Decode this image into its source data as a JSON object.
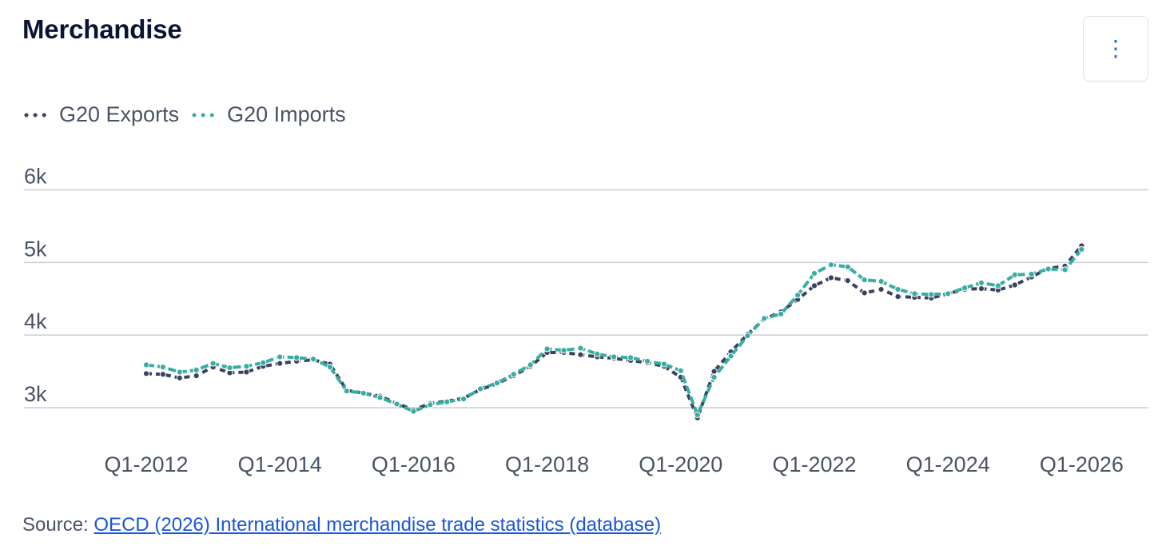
{
  "title": "Merchandise",
  "menu_icon": "vertical-ellipsis-icon",
  "source": {
    "prefix": "Source: ",
    "link_text": "OECD (2026) International merchandise trade statistics (database)"
  },
  "colors": {
    "exports": "#3b4260",
    "imports": "#3aada3",
    "grid": "#c9cfda",
    "axis_text": "#4a5364"
  },
  "chart_data": {
    "type": "line",
    "y_ticks": [
      "3k",
      "4k",
      "5k",
      "6k"
    ],
    "ylim": [
      2600,
      6200
    ],
    "x_tick_labels": [
      "Q1-2012",
      "Q1-2014",
      "Q1-2016",
      "Q1-2018",
      "Q1-2020",
      "Q1-2022",
      "Q1-2024",
      "Q1-2026"
    ],
    "grid": true,
    "legend_position": "top-left",
    "series": [
      {
        "name": "G20 Exports",
        "key": "exports",
        "style": "dotted",
        "points": [
          [
            "Q1-2012",
            3470
          ],
          [
            "Q2-2012",
            3460
          ],
          [
            "Q3-2012",
            3410
          ],
          [
            "Q4-2012",
            3440
          ],
          [
            "Q1-2013",
            3560
          ],
          [
            "Q2-2013",
            3480
          ],
          [
            "Q3-2013",
            3490
          ],
          [
            "Q4-2013",
            3570
          ],
          [
            "Q1-2014",
            3610
          ],
          [
            "Q2-2014",
            3640
          ],
          [
            "Q3-2014",
            3660
          ],
          [
            "Q4-2014",
            3600
          ],
          [
            "Q1-2015",
            3240
          ],
          [
            "Q2-2015",
            3200
          ],
          [
            "Q3-2015",
            3160
          ],
          [
            "Q4-2015",
            3060
          ],
          [
            "Q1-2016",
            2970
          ],
          [
            "Q2-2016",
            3060
          ],
          [
            "Q3-2016",
            3090
          ],
          [
            "Q4-2016",
            3130
          ],
          [
            "Q1-2017",
            3250
          ],
          [
            "Q2-2017",
            3330
          ],
          [
            "Q3-2017",
            3440
          ],
          [
            "Q4-2017",
            3570
          ],
          [
            "Q1-2018",
            3760
          ],
          [
            "Q2-2018",
            3760
          ],
          [
            "Q3-2018",
            3730
          ],
          [
            "Q4-2018",
            3700
          ],
          [
            "Q1-2019",
            3680
          ],
          [
            "Q2-2019",
            3650
          ],
          [
            "Q3-2019",
            3620
          ],
          [
            "Q4-2019",
            3570
          ],
          [
            "Q1-2020",
            3420
          ],
          [
            "Q2-2020",
            2860
          ],
          [
            "Q3-2020",
            3500
          ],
          [
            "Q4-2020",
            3770
          ],
          [
            "Q1-2021",
            4010
          ],
          [
            "Q2-2021",
            4220
          ],
          [
            "Q3-2021",
            4320
          ],
          [
            "Q4-2021",
            4490
          ],
          [
            "Q1-2022",
            4680
          ],
          [
            "Q2-2022",
            4790
          ],
          [
            "Q3-2022",
            4750
          ],
          [
            "Q4-2022",
            4580
          ],
          [
            "Q1-2023",
            4630
          ],
          [
            "Q2-2023",
            4530
          ],
          [
            "Q3-2023",
            4520
          ],
          [
            "Q4-2023",
            4510
          ],
          [
            "Q1-2024",
            4570
          ],
          [
            "Q2-2024",
            4630
          ],
          [
            "Q3-2024",
            4640
          ],
          [
            "Q4-2024",
            4620
          ],
          [
            "Q1-2025",
            4690
          ],
          [
            "Q2-2025",
            4800
          ],
          [
            "Q3-2025",
            4920
          ],
          [
            "Q4-2025",
            4950
          ],
          [
            "Q1-2026",
            5230
          ]
        ]
      },
      {
        "name": "G20 Imports",
        "key": "imports",
        "style": "dashed-dot",
        "points": [
          [
            "Q1-2012",
            3590
          ],
          [
            "Q2-2012",
            3560
          ],
          [
            "Q3-2012",
            3490
          ],
          [
            "Q4-2012",
            3520
          ],
          [
            "Q1-2013",
            3610
          ],
          [
            "Q2-2013",
            3550
          ],
          [
            "Q3-2013",
            3570
          ],
          [
            "Q4-2013",
            3620
          ],
          [
            "Q1-2014",
            3700
          ],
          [
            "Q2-2014",
            3690
          ],
          [
            "Q3-2014",
            3670
          ],
          [
            "Q4-2014",
            3560
          ],
          [
            "Q1-2015",
            3230
          ],
          [
            "Q2-2015",
            3200
          ],
          [
            "Q3-2015",
            3140
          ],
          [
            "Q4-2015",
            3050
          ],
          [
            "Q1-2016",
            2950
          ],
          [
            "Q2-2016",
            3040
          ],
          [
            "Q3-2016",
            3080
          ],
          [
            "Q4-2016",
            3120
          ],
          [
            "Q1-2017",
            3260
          ],
          [
            "Q2-2017",
            3340
          ],
          [
            "Q3-2017",
            3460
          ],
          [
            "Q4-2017",
            3590
          ],
          [
            "Q1-2018",
            3810
          ],
          [
            "Q2-2018",
            3790
          ],
          [
            "Q3-2018",
            3820
          ],
          [
            "Q4-2018",
            3740
          ],
          [
            "Q1-2019",
            3700
          ],
          [
            "Q2-2019",
            3690
          ],
          [
            "Q3-2019",
            3640
          ],
          [
            "Q4-2019",
            3600
          ],
          [
            "Q1-2020",
            3510
          ],
          [
            "Q2-2020",
            2900
          ],
          [
            "Q3-2020",
            3420
          ],
          [
            "Q4-2020",
            3710
          ],
          [
            "Q1-2021",
            3990
          ],
          [
            "Q2-2021",
            4230
          ],
          [
            "Q3-2021",
            4290
          ],
          [
            "Q4-2021",
            4550
          ],
          [
            "Q1-2022",
            4850
          ],
          [
            "Q2-2022",
            4970
          ],
          [
            "Q3-2022",
            4940
          ],
          [
            "Q4-2022",
            4760
          ],
          [
            "Q1-2023",
            4740
          ],
          [
            "Q2-2023",
            4630
          ],
          [
            "Q3-2023",
            4570
          ],
          [
            "Q4-2023",
            4560
          ],
          [
            "Q1-2024",
            4570
          ],
          [
            "Q2-2024",
            4650
          ],
          [
            "Q3-2024",
            4720
          ],
          [
            "Q4-2024",
            4680
          ],
          [
            "Q1-2025",
            4830
          ],
          [
            "Q2-2025",
            4840
          ],
          [
            "Q3-2025",
            4910
          ],
          [
            "Q4-2025",
            4900
          ],
          [
            "Q1-2026",
            5180
          ]
        ]
      }
    ]
  }
}
